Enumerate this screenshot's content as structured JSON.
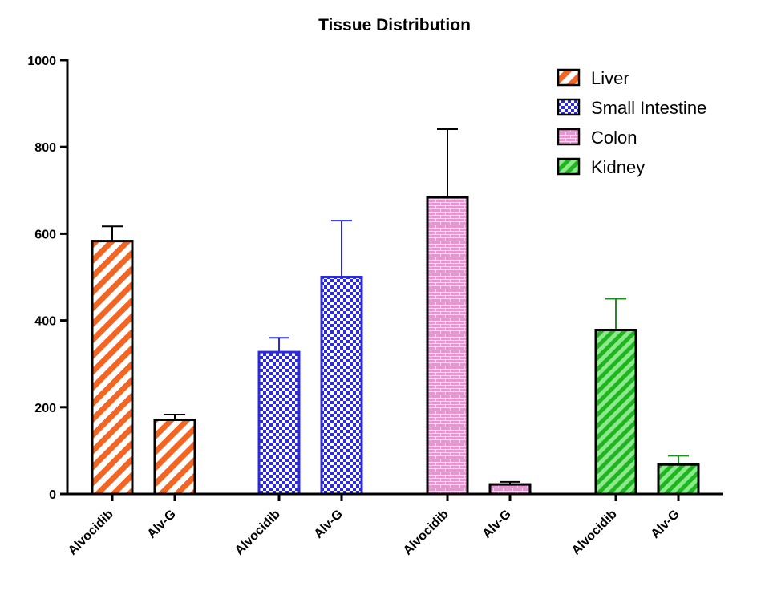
{
  "chart_data": {
    "type": "bar",
    "title": "Tissue Distribution",
    "xlabel": "",
    "ylabel": "",
    "ylim": [
      0,
      1000
    ],
    "yticks": [
      0,
      200,
      400,
      600,
      800,
      1000
    ],
    "grid": false,
    "legend_position": "top-right",
    "categories": [
      "Alvocidib",
      "Alv-G"
    ],
    "series": [
      {
        "name": "Liver",
        "color": "#f26522",
        "pattern": "diagonal-stripes",
        "values": [
          583,
          171
        ],
        "errors": [
          34,
          12
        ]
      },
      {
        "name": "Small Intestine",
        "color": "#2b2bdb",
        "pattern": "checkerboard",
        "values": [
          327,
          500
        ],
        "errors": [
          33,
          130
        ]
      },
      {
        "name": "Colon",
        "color": "#f08fd8",
        "pattern": "brick",
        "values": [
          684,
          22
        ],
        "errors": [
          157,
          6
        ]
      },
      {
        "name": "Kidney",
        "color": "#2cc42c",
        "pattern": "diagonal-stripes",
        "values": [
          378,
          68
        ],
        "errors": [
          72,
          20
        ]
      }
    ]
  }
}
